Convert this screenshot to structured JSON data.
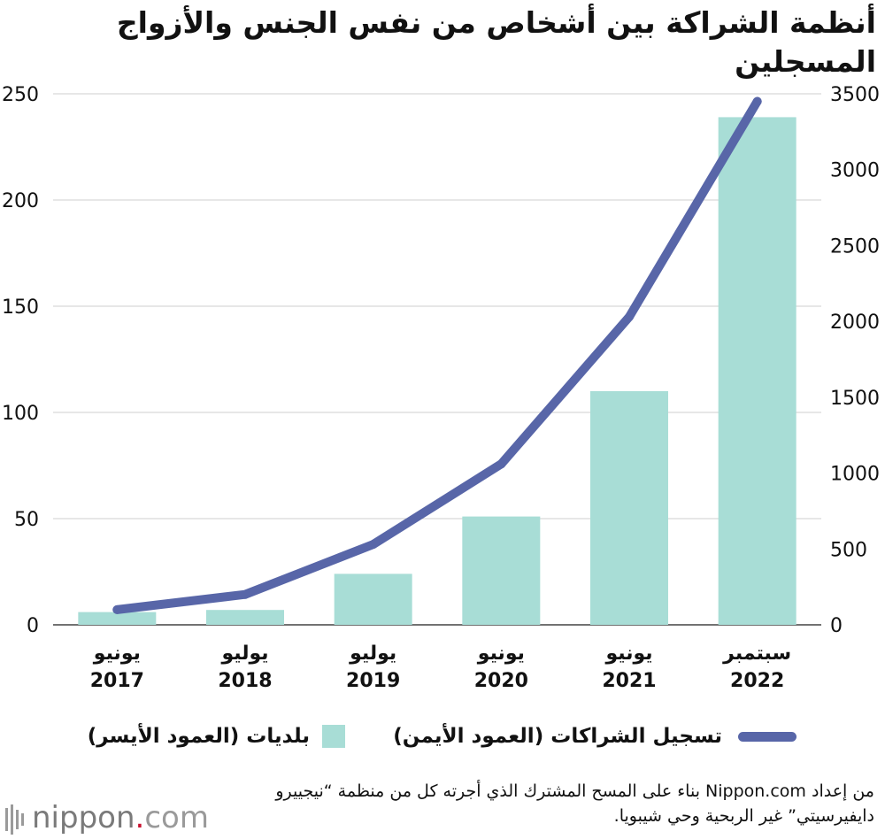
{
  "colors": {
    "bar": "#a8ddd6",
    "line": "#5866a8",
    "grid": "#cfcfcf",
    "text": "#111111"
  },
  "logo": {
    "word": "nippon",
    "dot": ".",
    "tld": "com"
  },
  "source": "من إعداد Nippon.com بناء على المسح المشترك الذي أجرته كل من منظمة “نيجييرو دايفيرسيتي” غير الربحية وحي شيبويا.",
  "chart_data": {
    "type": "bar+line",
    "title": "أنظمة الشراكة بين أشخاص من نفس الجنس والأزواج المسجلين",
    "categories": [
      {
        "month": "يونيو",
        "year": "2017"
      },
      {
        "month": "يوليو",
        "year": "2018"
      },
      {
        "month": "يوليو",
        "year": "2019"
      },
      {
        "month": "يونيو",
        "year": "2020"
      },
      {
        "month": "يونيو",
        "year": "2021"
      },
      {
        "month": "سبتمبر",
        "year": "2022"
      }
    ],
    "series": [
      {
        "name": "بلديات (العمود الأيسر)",
        "type": "bar",
        "axis": "left",
        "values": [
          6,
          7,
          24,
          51,
          110,
          239
        ]
      },
      {
        "name": "تسجيل الشراكات (العمود الأيمن)",
        "type": "line",
        "axis": "right",
        "values": [
          100,
          200,
          530,
          1060,
          2030,
          3450
        ]
      }
    ],
    "left_axis": {
      "min": 0,
      "max": 250,
      "ticks": [
        0,
        50,
        100,
        150,
        200,
        250
      ]
    },
    "right_axis": {
      "min": 0,
      "max": 3500,
      "ticks": [
        0,
        500,
        1000,
        1500,
        2000,
        2500,
        3000,
        3500
      ]
    },
    "grid": true,
    "legend_position": "bottom"
  }
}
